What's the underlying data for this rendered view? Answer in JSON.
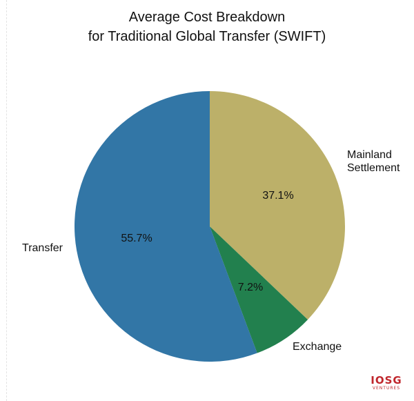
{
  "chart_data": {
    "type": "pie",
    "title_lines": [
      "Average Cost Breakdown",
      "for Traditional Global Transfer (SWIFT)"
    ],
    "slices": [
      {
        "name": "Mainland Settlement",
        "label_lines": [
          "Mainland",
          "Settlement"
        ],
        "value": 37.1,
        "value_label": "37.1%",
        "color": "#bcb069"
      },
      {
        "name": "Exchange",
        "label_lines": [
          "Exchange"
        ],
        "value": 7.2,
        "value_label": "7.2%",
        "color": "#22804e"
      },
      {
        "name": "Transfer",
        "label_lines": [
          "Transfer"
        ],
        "value": 55.7,
        "value_label": "55.7%",
        "color": "#3276a6"
      }
    ],
    "start": "top",
    "direction": "clockwise"
  },
  "logo": {
    "main": "IOSG",
    "sub": "VENTURES"
  }
}
